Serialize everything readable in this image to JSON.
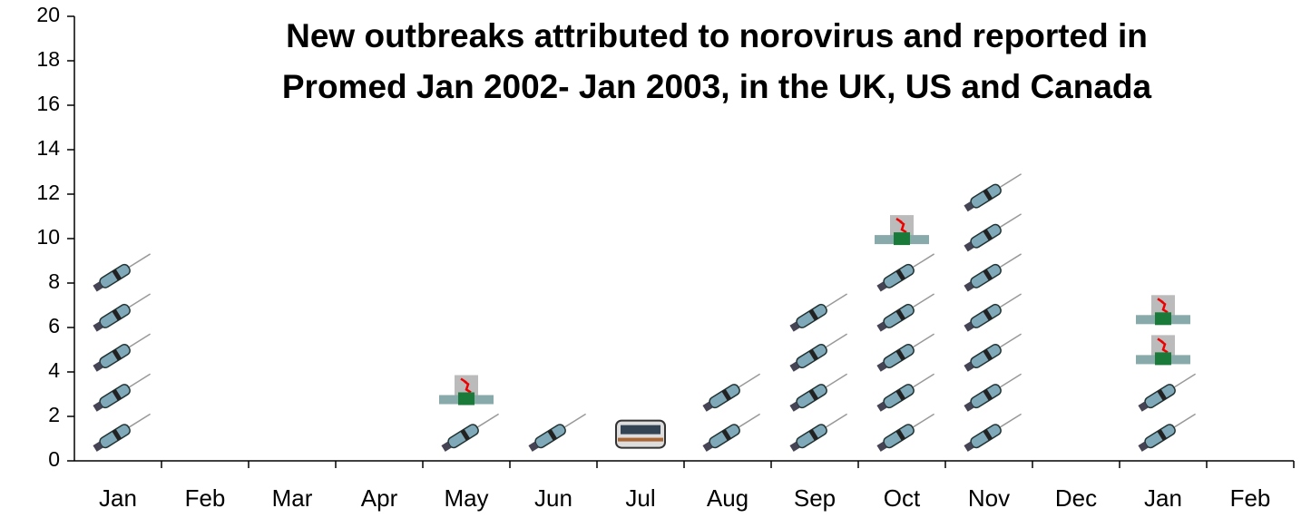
{
  "chart_data": {
    "type": "pictogram",
    "title": [
      "New outbreaks attributed to norovirus and reported in",
      "Promed Jan 2002- Jan 2003, in the UK, US and Canada"
    ],
    "categories": [
      "Jan",
      "Feb",
      "Mar",
      "Apr",
      "May",
      "Jun",
      "Jul",
      "Aug",
      "Sep",
      "Oct",
      "Nov",
      "Dec",
      "Jan",
      "Feb"
    ],
    "series": [
      {
        "icon": "syringe",
        "values": [
          5,
          0,
          0,
          0,
          1,
          1,
          0,
          2,
          4,
          5,
          7,
          0,
          2,
          0
        ]
      },
      {
        "icon": "building",
        "values": [
          0,
          0,
          0,
          0,
          1,
          0,
          0,
          0,
          0,
          1,
          0,
          0,
          2,
          0
        ]
      },
      {
        "icon": "bus",
        "values": [
          0,
          0,
          0,
          0,
          0,
          0,
          1,
          0,
          0,
          0,
          0,
          0,
          0,
          0
        ]
      }
    ],
    "ylim": [
      0,
      20
    ],
    "yticks": [
      0,
      2,
      4,
      6,
      8,
      10,
      12,
      14,
      16,
      18,
      20
    ]
  }
}
